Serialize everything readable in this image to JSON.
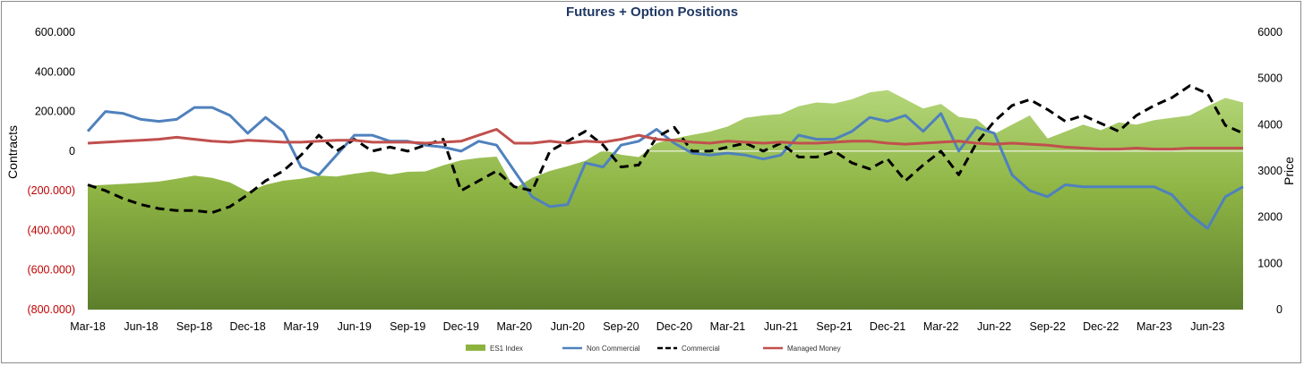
{
  "chart_data": {
    "type": "line",
    "title": "Futures + Option Positions",
    "ylabel": "Contracts",
    "y2label": "Price",
    "ylim": [
      -800000,
      600000
    ],
    "y2lim": [
      0,
      6000
    ],
    "yticks": [
      {
        "v": 600000,
        "label": "600.000"
      },
      {
        "v": 400000,
        "label": "400.000"
      },
      {
        "v": 200000,
        "label": "200.000"
      },
      {
        "v": 0,
        "label": "0"
      },
      {
        "v": -200000,
        "label": "(200.000)"
      },
      {
        "v": -400000,
        "label": "(400.000)"
      },
      {
        "v": -600000,
        "label": "(600.000)"
      },
      {
        "v": -800000,
        "label": "(800.000)"
      }
    ],
    "y2ticks": [
      {
        "v": 6000,
        "label": "6000"
      },
      {
        "v": 5000,
        "label": "5000"
      },
      {
        "v": 4000,
        "label": "4000"
      },
      {
        "v": 3000,
        "label": "3000"
      },
      {
        "v": 2000,
        "label": "2000"
      },
      {
        "v": 1000,
        "label": "1000"
      },
      {
        "v": 0,
        "label": "0"
      }
    ],
    "xticks": [
      "Mar-18",
      "Jun-18",
      "Sep-18",
      "Dec-18",
      "Mar-19",
      "Jun-19",
      "Sep-19",
      "Dec-19",
      "Mar-20",
      "Jun-20",
      "Sep-20",
      "Dec-20",
      "Mar-21",
      "Jun-21",
      "Sep-21",
      "Dec-21",
      "Mar-22",
      "Jun-22",
      "Sep-22",
      "Dec-22",
      "Mar-23",
      "Jun-23"
    ],
    "x": [
      "Mar-18",
      "Apr-18",
      "May-18",
      "Jun-18",
      "Jul-18",
      "Aug-18",
      "Sep-18",
      "Oct-18",
      "Nov-18",
      "Dec-18",
      "Jan-19",
      "Feb-19",
      "Mar-19",
      "Apr-19",
      "May-19",
      "Jun-19",
      "Jul-19",
      "Aug-19",
      "Sep-19",
      "Oct-19",
      "Nov-19",
      "Dec-19",
      "Jan-20",
      "Feb-20",
      "Mar-20",
      "Apr-20",
      "May-20",
      "Jun-20",
      "Jul-20",
      "Aug-20",
      "Sep-20",
      "Oct-20",
      "Nov-20",
      "Dec-20",
      "Jan-21",
      "Feb-21",
      "Mar-21",
      "Apr-21",
      "May-21",
      "Jun-21",
      "Jul-21",
      "Aug-21",
      "Sep-21",
      "Oct-21",
      "Nov-21",
      "Dec-21",
      "Jan-22",
      "Feb-22",
      "Mar-22",
      "Apr-22",
      "May-22",
      "Jun-22",
      "Jul-22",
      "Aug-22",
      "Sep-22",
      "Oct-22",
      "Nov-22",
      "Dec-22",
      "Jan-23",
      "Feb-23",
      "Mar-23",
      "Apr-23",
      "May-23",
      "Jun-23",
      "Jul-23",
      "Aug-23"
    ],
    "series": [
      {
        "name": "ES1 Index",
        "axis": "secondary",
        "style": "area",
        "color": "#8db33f",
        "values": [
          2680,
          2700,
          2720,
          2740,
          2770,
          2830,
          2900,
          2850,
          2750,
          2550,
          2700,
          2790,
          2830,
          2900,
          2880,
          2940,
          2990,
          2920,
          2980,
          2990,
          3120,
          3230,
          3280,
          3310,
          2620,
          2850,
          3000,
          3100,
          3220,
          3450,
          3350,
          3300,
          3600,
          3700,
          3780,
          3850,
          3960,
          4150,
          4200,
          4230,
          4400,
          4480,
          4460,
          4550,
          4700,
          4750,
          4550,
          4350,
          4450,
          4170,
          4120,
          3800,
          4000,
          4200,
          3700,
          3850,
          4000,
          3880,
          4050,
          4000,
          4100,
          4150,
          4200,
          4400,
          4580,
          4480
        ]
      },
      {
        "name": "Non Commercial",
        "axis": "primary",
        "style": "solid",
        "color": "#4f81bd",
        "values": [
          100000,
          200000,
          190000,
          160000,
          150000,
          160000,
          220000,
          220000,
          180000,
          90000,
          170000,
          100000,
          -80000,
          -120000,
          -20000,
          80000,
          80000,
          50000,
          50000,
          30000,
          20000,
          0,
          50000,
          30000,
          -100000,
          -230000,
          -280000,
          -270000,
          -60000,
          -80000,
          30000,
          50000,
          110000,
          40000,
          -10000,
          -20000,
          -10000,
          -20000,
          -40000,
          -20000,
          80000,
          60000,
          60000,
          100000,
          170000,
          150000,
          180000,
          100000,
          190000,
          0,
          120000,
          90000,
          -120000,
          -200000,
          -230000,
          -170000,
          -180000,
          -180000,
          -180000,
          -180000,
          -180000,
          -220000,
          -320000,
          -390000,
          -230000,
          -180000
        ]
      },
      {
        "name": "Commercial",
        "axis": "primary",
        "style": "dashed",
        "color": "#000000",
        "values": [
          -170000,
          -200000,
          -240000,
          -270000,
          -290000,
          -300000,
          -300000,
          -310000,
          -280000,
          -220000,
          -150000,
          -100000,
          -20000,
          80000,
          0,
          60000,
          0,
          20000,
          0,
          30000,
          60000,
          -200000,
          -150000,
          -100000,
          -180000,
          -200000,
          0,
          50000,
          100000,
          30000,
          -80000,
          -70000,
          70000,
          120000,
          0,
          0,
          20000,
          40000,
          0,
          40000,
          -30000,
          -30000,
          0,
          -60000,
          -90000,
          -40000,
          -150000,
          -70000,
          0,
          -120000,
          40000,
          150000,
          230000,
          260000,
          210000,
          150000,
          180000,
          140000,
          100000,
          180000,
          230000,
          270000,
          330000,
          290000,
          130000,
          90000
        ]
      },
      {
        "name": "Managed Money",
        "axis": "primary",
        "style": "solid",
        "color": "#c0504d",
        "values": [
          40000,
          45000,
          50000,
          55000,
          60000,
          70000,
          60000,
          50000,
          45000,
          55000,
          50000,
          45000,
          45000,
          50000,
          55000,
          55000,
          45000,
          45000,
          45000,
          40000,
          45000,
          50000,
          80000,
          110000,
          40000,
          40000,
          50000,
          40000,
          50000,
          45000,
          60000,
          80000,
          60000,
          55000,
          45000,
          40000,
          50000,
          45000,
          40000,
          45000,
          40000,
          40000,
          45000,
          50000,
          50000,
          40000,
          35000,
          40000,
          45000,
          50000,
          40000,
          35000,
          40000,
          35000,
          30000,
          20000,
          15000,
          10000,
          10000,
          15000,
          10000,
          10000,
          15000,
          15000,
          15000,
          15000
        ]
      }
    ],
    "legend": {
      "position": "bottom",
      "entries": [
        "ES1 Index",
        "Non Commercial",
        "Commercial",
        "Managed Money"
      ]
    },
    "grid": false
  }
}
